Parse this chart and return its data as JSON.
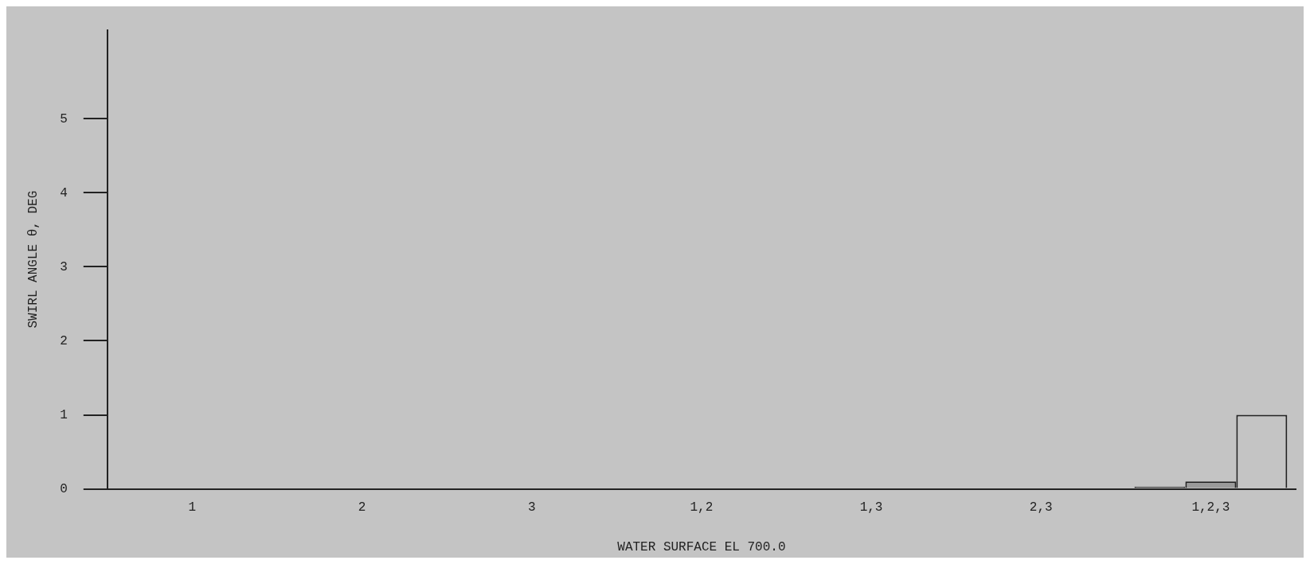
{
  "chart_data": {
    "type": "bar",
    "xlabel": "WATER SURFACE EL 700.0",
    "ylabel": "SWIRL ANGLE θ, DEG",
    "categories": [
      "1",
      "2",
      "3",
      "1,2",
      "1,3",
      "2,3",
      "1,2,3"
    ],
    "series": [
      {
        "color": "#4a4a4a",
        "values": [
          0,
          0,
          0,
          0,
          0,
          0,
          0.03
        ]
      },
      {
        "color": "#9a9a9a",
        "values": [
          0,
          0,
          0,
          0,
          0,
          0,
          0.1
        ]
      },
      {
        "color": "#c4c4c4",
        "values": [
          0,
          0,
          0,
          0,
          0,
          0,
          1.0
        ]
      }
    ],
    "ylim": [
      0,
      6.2
    ],
    "yticks": [
      0,
      1,
      2,
      3,
      4,
      5
    ],
    "grid": false,
    "legend": false
  }
}
